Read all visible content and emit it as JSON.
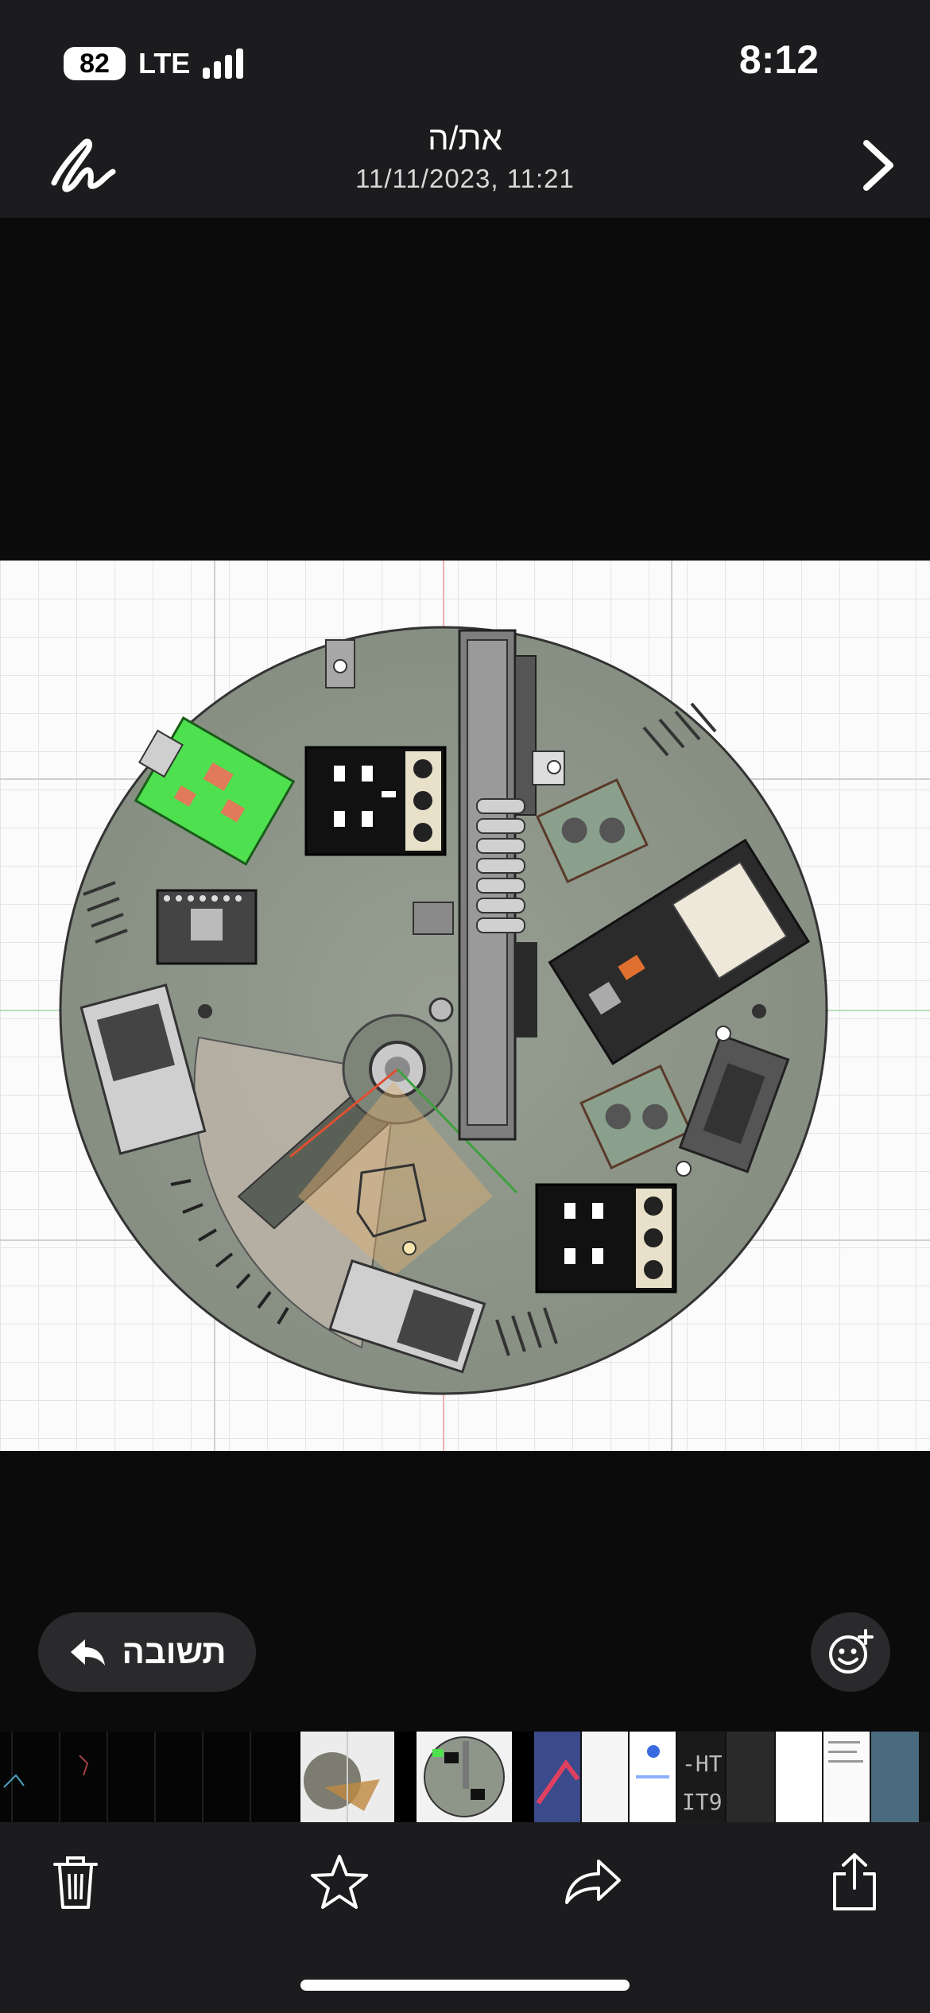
{
  "status": {
    "battery": "82",
    "network": "LTE",
    "time": "8:12"
  },
  "header": {
    "title": "את/ה",
    "subtitle": "11/11/2023, 11:21",
    "left_icon": "markup-scribble-icon",
    "right_icon": "chevron-right-icon"
  },
  "actions": {
    "reply_label": "תשובה",
    "reply_icon": "reply-arrow-icon",
    "emoji_icon": "add-reaction-icon"
  },
  "toolbar": {
    "items": [
      {
        "name": "delete",
        "icon": "trash-icon"
      },
      {
        "name": "favorite",
        "icon": "star-icon"
      },
      {
        "name": "forward",
        "icon": "forward-arrow-icon"
      },
      {
        "name": "share",
        "icon": "share-icon"
      }
    ]
  },
  "colors": {
    "background": "#0b0b0b",
    "bar": "#1c1c1e",
    "pill": "#2a2a2c",
    "plate": "#8e968a",
    "grid": "#e3e3e3"
  }
}
